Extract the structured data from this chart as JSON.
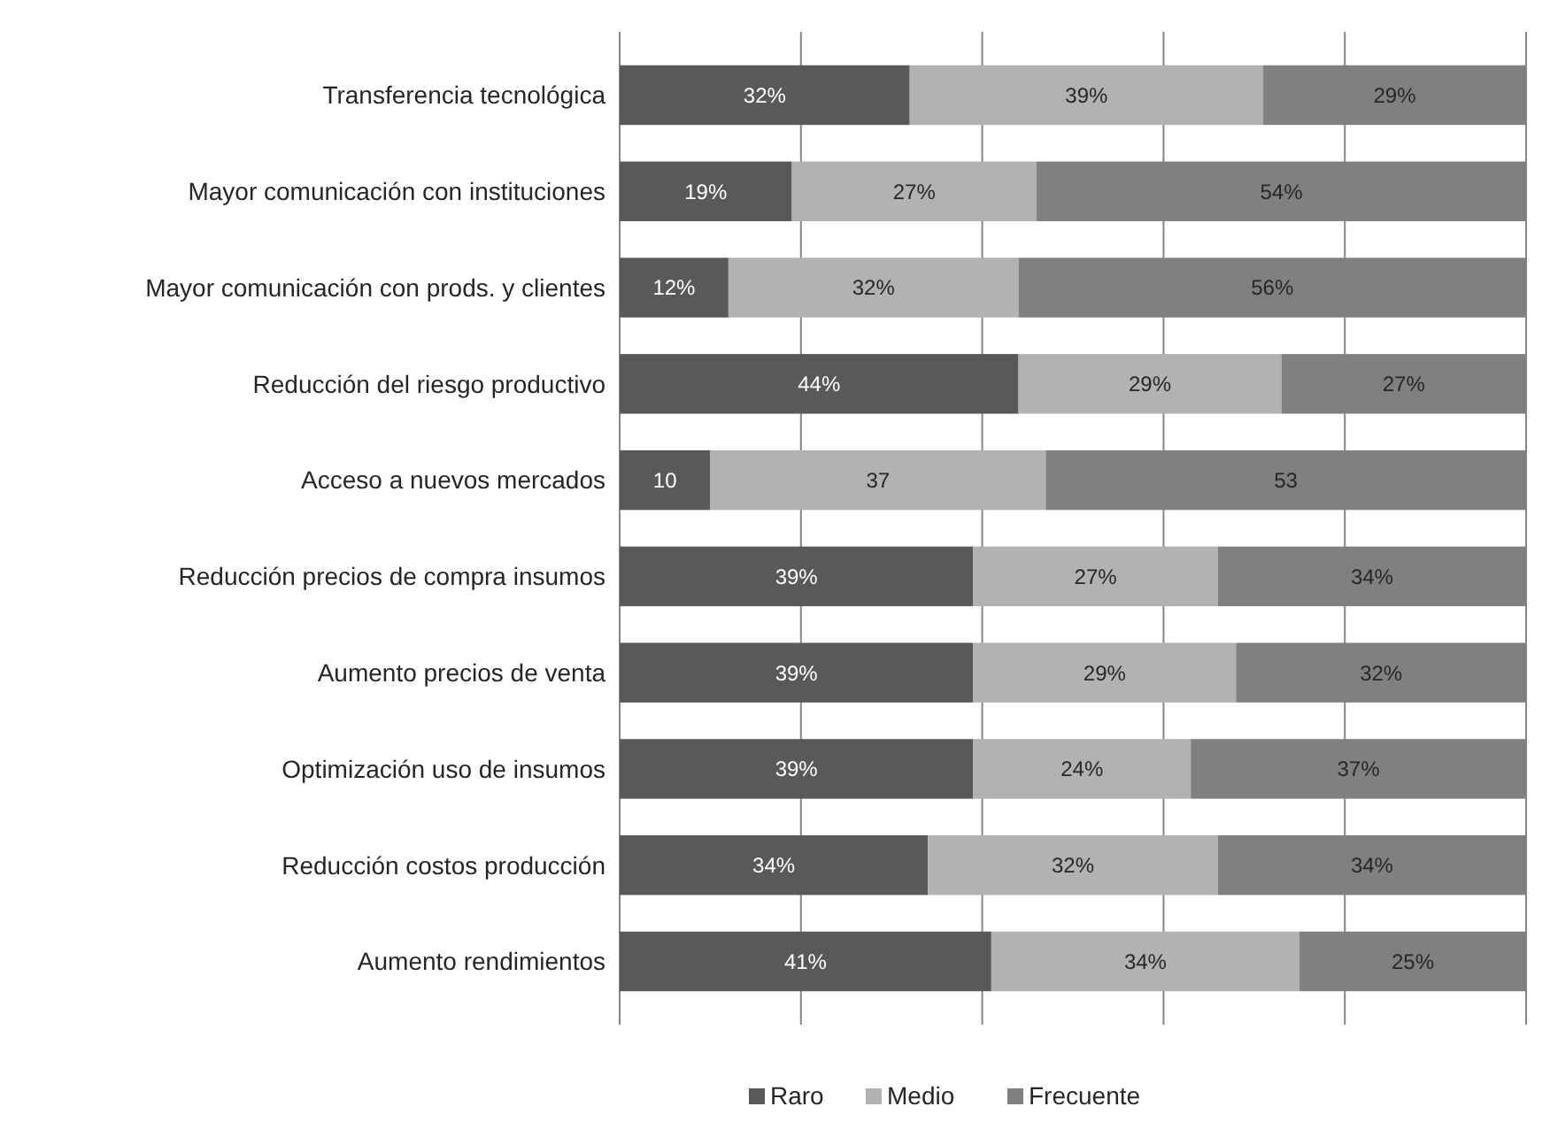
{
  "chart_data": {
    "type": "bar",
    "orientation": "horizontal",
    "stacked": true,
    "categories": [
      "Transferencia tecnológica",
      "Mayor comunicación con instituciones",
      "Mayor comunicación con prods. y clientes",
      "Reducción del riesgo productivo",
      "Acceso a nuevos mercados",
      "Reducción precios de compra insumos",
      "Aumento precios de venta",
      "Optimización uso de insumos",
      "Reducción costos producción",
      "Aumento rendimientos"
    ],
    "series": [
      {
        "name": "Raro",
        "color": "#595959",
        "values": [
          32,
          19,
          12,
          44,
          10,
          39,
          39,
          39,
          34,
          41
        ],
        "value_labels": [
          "32%",
          "19%",
          "12%",
          "44%",
          "10",
          "39%",
          "39%",
          "39%",
          "34%",
          "41%"
        ]
      },
      {
        "name": "Medio",
        "color": "#b2b2b2",
        "values": [
          39,
          27,
          32,
          29,
          37,
          27,
          29,
          24,
          32,
          34
        ],
        "value_labels": [
          "39%",
          "27%",
          "32%",
          "29%",
          "37",
          "27%",
          "29%",
          "24%",
          "32%",
          "34%"
        ]
      },
      {
        "name": "Frecuente",
        "color": "#808080",
        "values": [
          29,
          54,
          56,
          27,
          53,
          34,
          32,
          37,
          34,
          25
        ],
        "value_labels": [
          "29%",
          "54%",
          "56%",
          "27%",
          "53",
          "34%",
          "32%",
          "37%",
          "34%",
          "25%"
        ]
      }
    ],
    "xlim": [
      0,
      100
    ],
    "xticks": [
      {
        "value": 0,
        "label": null
      },
      {
        "value": 20,
        "label": null
      },
      {
        "value": 40,
        "label": null
      },
      {
        "value": 60,
        "label": null
      },
      {
        "value": 80,
        "label": null
      },
      {
        "value": 100,
        "label": null
      }
    ],
    "tick_labels": "y",
    "grid": "x",
    "legend": "bottom"
  }
}
